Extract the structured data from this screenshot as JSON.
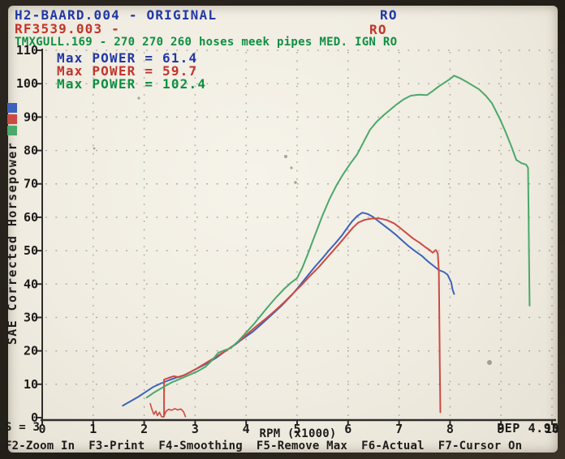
{
  "header": {
    "line1": {
      "text": "H2-BAARD.004 - ORIGINAL",
      "right": "RO",
      "color": "#2138a6"
    },
    "line2": {
      "text": "RF3539.003 -",
      "right": "RO",
      "color": "#c2352b"
    },
    "line3": {
      "text": "TMXGULL.169 - 270 270 260 hoses meek pipes MED. IGN RO",
      "color": "#0f8f42"
    }
  },
  "legend": [
    {
      "label": "Max POWER = 61.4",
      "color": "#2138a6"
    },
    {
      "label": "Max POWER = 59.7",
      "color": "#c2352b"
    },
    {
      "label": "Max POWER = 102.4",
      "color": "#0f8f42"
    }
  ],
  "status": {
    "smoothing": "S = 3",
    "version": "PEP 4.95"
  },
  "function_keys": [
    "F2-Zoom In",
    "F3-Print",
    "F4-Smoothing",
    "F5-Remove Max",
    "F6-Actual",
    "F7-Cursor On"
  ],
  "chart_data": {
    "type": "line",
    "xlabel": "RPM (x1000)",
    "ylabel": "SAE Corrected Horsepower",
    "xlim": [
      0,
      10
    ],
    "ylim": [
      0,
      110
    ],
    "x_ticks": [
      0,
      1,
      2,
      3,
      4,
      5,
      6,
      7,
      8,
      9,
      10
    ],
    "y_ticks": [
      0,
      10,
      20,
      30,
      40,
      50,
      60,
      70,
      80,
      90,
      100,
      110
    ],
    "grid": "dotted",
    "legend_position": "top-left",
    "series": [
      {
        "name": "H2-BAARD.004 - ORIGINAL",
        "color": "#3c63bb",
        "max_power": 61.4,
        "width": 2,
        "points": [
          [
            1.58,
            3.6
          ],
          [
            1.72,
            4.8
          ],
          [
            1.88,
            6.2
          ],
          [
            2.02,
            7.6
          ],
          [
            2.18,
            9.2
          ],
          [
            2.32,
            10.2
          ],
          [
            2.5,
            11.3
          ],
          [
            2.65,
            12.1
          ],
          [
            2.8,
            12.8
          ],
          [
            2.95,
            14.0
          ],
          [
            3.1,
            15.2
          ],
          [
            3.25,
            16.4
          ],
          [
            3.42,
            18.0
          ],
          [
            3.6,
            20.0
          ],
          [
            3.78,
            21.8
          ],
          [
            3.95,
            23.8
          ],
          [
            4.12,
            25.6
          ],
          [
            4.3,
            28.0
          ],
          [
            4.5,
            30.8
          ],
          [
            4.7,
            33.6
          ],
          [
            4.9,
            36.8
          ],
          [
            5.05,
            39.5
          ],
          [
            5.2,
            42.4
          ],
          [
            5.35,
            45.2
          ],
          [
            5.5,
            47.8
          ],
          [
            5.62,
            50.0
          ],
          [
            5.75,
            52.2
          ],
          [
            5.88,
            54.6
          ],
          [
            6.0,
            57.2
          ],
          [
            6.08,
            58.8
          ],
          [
            6.18,
            60.4
          ],
          [
            6.28,
            61.4
          ],
          [
            6.38,
            61.0
          ],
          [
            6.48,
            60.2
          ],
          [
            6.58,
            59.0
          ],
          [
            6.7,
            57.6
          ],
          [
            6.82,
            56.2
          ],
          [
            6.95,
            54.6
          ],
          [
            7.08,
            52.8
          ],
          [
            7.2,
            51.2
          ],
          [
            7.32,
            49.8
          ],
          [
            7.45,
            48.4
          ],
          [
            7.58,
            46.6
          ],
          [
            7.68,
            45.4
          ],
          [
            7.78,
            44.2
          ],
          [
            7.88,
            43.6
          ],
          [
            7.95,
            42.8
          ],
          [
            8.02,
            40.6
          ],
          [
            8.05,
            38.4
          ],
          [
            8.08,
            37.0
          ]
        ]
      },
      {
        "name": "RF3539.003",
        "color": "#cd4a42",
        "max_power": 59.7,
        "width": 2,
        "points": [
          [
            2.39,
            0.4
          ],
          [
            2.39,
            11.4
          ],
          [
            2.48,
            11.9
          ],
          [
            2.58,
            12.4
          ],
          [
            2.68,
            12.1
          ],
          [
            2.78,
            12.7
          ],
          [
            2.9,
            13.6
          ],
          [
            3.02,
            14.6
          ],
          [
            3.15,
            15.8
          ],
          [
            3.3,
            17.2
          ],
          [
            3.45,
            18.6
          ],
          [
            3.6,
            20.0
          ],
          [
            3.75,
            21.6
          ],
          [
            3.9,
            23.4
          ],
          [
            4.05,
            25.4
          ],
          [
            4.22,
            27.6
          ],
          [
            4.4,
            29.8
          ],
          [
            4.58,
            32.2
          ],
          [
            4.75,
            34.6
          ],
          [
            4.92,
            37.2
          ],
          [
            5.08,
            39.6
          ],
          [
            5.25,
            42.4
          ],
          [
            5.42,
            45.0
          ],
          [
            5.58,
            47.8
          ],
          [
            5.72,
            50.2
          ],
          [
            5.88,
            53.0
          ],
          [
            6.0,
            55.2
          ],
          [
            6.1,
            57.0
          ],
          [
            6.2,
            58.4
          ],
          [
            6.32,
            59.2
          ],
          [
            6.45,
            59.6
          ],
          [
            6.6,
            59.7
          ],
          [
            6.75,
            59.2
          ],
          [
            6.9,
            58.2
          ],
          [
            7.02,
            56.8
          ],
          [
            7.15,
            55.2
          ],
          [
            7.28,
            53.6
          ],
          [
            7.4,
            52.4
          ],
          [
            7.52,
            51.0
          ],
          [
            7.6,
            50.2
          ],
          [
            7.66,
            49.4
          ],
          [
            7.72,
            50.2
          ],
          [
            7.76,
            49.2
          ],
          [
            7.78,
            44.0
          ],
          [
            7.79,
            30.0
          ],
          [
            7.8,
            15.0
          ],
          [
            7.81,
            1.6
          ]
        ]
      },
      {
        "name": "TMXGULL.169",
        "color": "#4ba86a",
        "max_power": 102.4,
        "width": 2,
        "points": [
          [
            2.05,
            6.0
          ],
          [
            2.2,
            7.6
          ],
          [
            2.38,
            9.2
          ],
          [
            2.55,
            10.6
          ],
          [
            2.72,
            11.7
          ],
          [
            2.9,
            12.9
          ],
          [
            3.05,
            13.9
          ],
          [
            3.2,
            15.2
          ],
          [
            3.32,
            17.0
          ],
          [
            3.45,
            19.4
          ],
          [
            3.58,
            20.2
          ],
          [
            3.7,
            20.8
          ],
          [
            3.85,
            23.0
          ],
          [
            4.0,
            25.5
          ],
          [
            4.15,
            28.0
          ],
          [
            4.3,
            30.8
          ],
          [
            4.45,
            33.6
          ],
          [
            4.6,
            36.2
          ],
          [
            4.75,
            38.6
          ],
          [
            4.88,
            40.4
          ],
          [
            5.0,
            41.8
          ],
          [
            5.1,
            44.8
          ],
          [
            5.2,
            48.6
          ],
          [
            5.3,
            52.6
          ],
          [
            5.4,
            56.6
          ],
          [
            5.5,
            60.6
          ],
          [
            5.64,
            65.6
          ],
          [
            5.78,
            69.8
          ],
          [
            5.9,
            72.8
          ],
          [
            6.05,
            76.2
          ],
          [
            6.18,
            78.9
          ],
          [
            6.3,
            82.4
          ],
          [
            6.43,
            86.2
          ],
          [
            6.56,
            88.6
          ],
          [
            6.7,
            90.6
          ],
          [
            6.84,
            92.4
          ],
          [
            6.97,
            94.0
          ],
          [
            7.1,
            95.4
          ],
          [
            7.23,
            96.4
          ],
          [
            7.39,
            96.7
          ],
          [
            7.55,
            96.6
          ],
          [
            7.66,
            97.8
          ],
          [
            7.77,
            99.1
          ],
          [
            7.9,
            100.4
          ],
          [
            8.0,
            101.4
          ],
          [
            8.08,
            102.4
          ],
          [
            8.2,
            101.6
          ],
          [
            8.32,
            100.6
          ],
          [
            8.45,
            99.4
          ],
          [
            8.57,
            98.3
          ],
          [
            8.7,
            96.4
          ],
          [
            8.82,
            94.2
          ],
          [
            8.9,
            91.8
          ],
          [
            8.98,
            89.4
          ],
          [
            9.09,
            85.5
          ],
          [
            9.2,
            81.3
          ],
          [
            9.3,
            77.2
          ],
          [
            9.4,
            76.2
          ],
          [
            9.49,
            75.8
          ],
          [
            9.53,
            74.8
          ],
          [
            9.54,
            62.0
          ],
          [
            9.55,
            48.0
          ],
          [
            9.56,
            33.5
          ]
        ]
      },
      {
        "name": "RF3539.003 low-rpm noise",
        "color": "#cd4a42",
        "max_power": null,
        "width": 1.6,
        "points": [
          [
            2.12,
            4.2
          ],
          [
            2.15,
            2.6
          ],
          [
            2.19,
            1.0
          ],
          [
            2.23,
            2.0
          ],
          [
            2.26,
            0.6
          ],
          [
            2.3,
            1.6
          ],
          [
            2.34,
            0.3
          ],
          [
            2.38,
            0.2
          ],
          [
            2.43,
            1.9
          ],
          [
            2.48,
            2.5
          ],
          [
            2.54,
            2.2
          ],
          [
            2.6,
            2.7
          ],
          [
            2.66,
            2.3
          ],
          [
            2.72,
            2.6
          ],
          [
            2.77,
            1.8
          ],
          [
            2.81,
            0.3
          ]
        ]
      }
    ]
  }
}
